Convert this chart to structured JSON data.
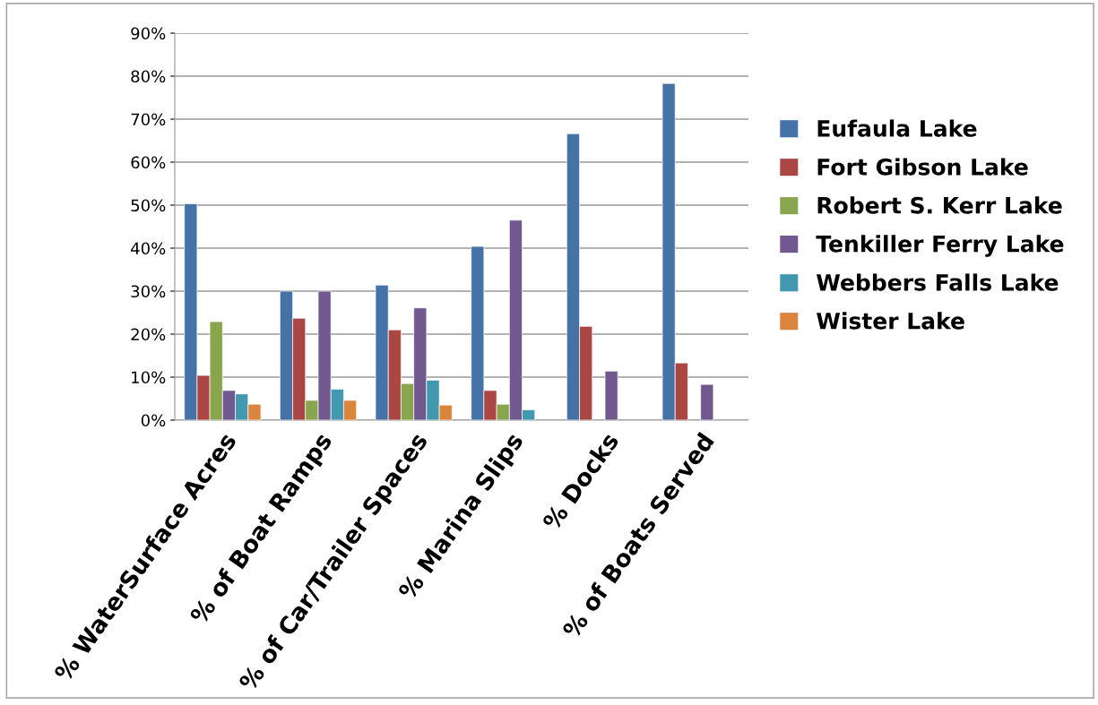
{
  "chart_data": {
    "type": "bar",
    "categories": [
      "% WaterSurface Acres",
      "% of Boat Ramps",
      "% of Car/Trailer Spaces",
      "% Marina Slips",
      "% Docks",
      "% of Boats Served"
    ],
    "series": [
      {
        "name": "Eufaula Lake",
        "color": "#4572a7",
        "values": [
          50.3,
          30.0,
          31.4,
          40.4,
          66.6,
          78.3
        ]
      },
      {
        "name": "Fort Gibson Lake",
        "color": "#aa4643",
        "values": [
          10.4,
          23.7,
          21.0,
          6.9,
          21.8,
          13.3
        ]
      },
      {
        "name": "Robert S. Kerr Lake",
        "color": "#89a54e",
        "values": [
          22.9,
          4.6,
          8.5,
          3.7,
          null,
          null
        ]
      },
      {
        "name": "Tenkiller Ferry Lake",
        "color": "#71588f",
        "values": [
          6.9,
          30.0,
          26.1,
          46.5,
          11.4,
          8.3
        ]
      },
      {
        "name": "Webbers Falls Lake",
        "color": "#4198af",
        "values": [
          6.1,
          7.2,
          9.3,
          2.4,
          null,
          null
        ]
      },
      {
        "name": "Wister Lake",
        "color": "#db843d",
        "values": [
          3.7,
          4.6,
          3.5,
          null,
          null,
          null
        ]
      }
    ],
    "ylim": [
      0,
      90
    ],
    "yticks": [
      {
        "value": 0,
        "label": "0%"
      },
      {
        "value": 10,
        "label": "10%"
      },
      {
        "value": 20,
        "label": "20%"
      },
      {
        "value": 30,
        "label": "30%"
      },
      {
        "value": 40,
        "label": "40%"
      },
      {
        "value": 50,
        "label": "50%"
      },
      {
        "value": 60,
        "label": "60%"
      },
      {
        "value": 70,
        "label": "70%"
      },
      {
        "value": 80,
        "label": "80%"
      },
      {
        "value": 90,
        "label": "90%"
      }
    ],
    "grid": "y",
    "legend": "right"
  }
}
